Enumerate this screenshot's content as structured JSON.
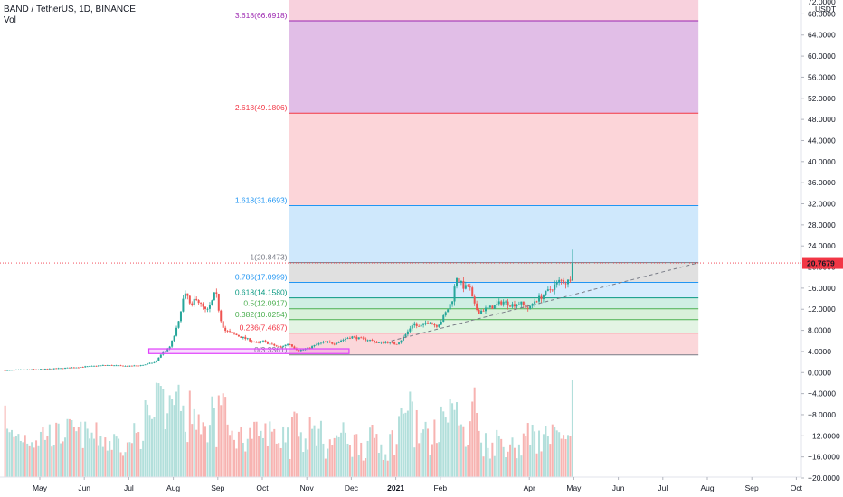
{
  "header": {
    "symbol_line": "BAND / TetherUS, 1D, BINANCE",
    "volume_label": "Vol"
  },
  "price_axis": {
    "unit": "USDT",
    "top_partial_label": "72.0000",
    "last_price_label": "20.7679",
    "last_price_color": "#f23645"
  },
  "chart_data": {
    "type": "candlestick",
    "price_ylim": [
      -21,
      75
    ],
    "y_tick_values": [
      68,
      64,
      60,
      56,
      52,
      48,
      44,
      40,
      36,
      32,
      28,
      24,
      20,
      16,
      12,
      8,
      4,
      0,
      -4,
      -8,
      -12,
      -16,
      -20
    ],
    "y_tick_labels": [
      "68.0000",
      "64.0000",
      "60.0000",
      "56.0000",
      "52.0000",
      "48.0000",
      "44.0000",
      "40.0000",
      "36.0000",
      "32.0000",
      "28.0000",
      "24.0000",
      "20.0000",
      "16.0000",
      "12.0000",
      "8.0000",
      "4.0000",
      "0.0000",
      "−4.0000",
      "−8.0000",
      "−12.0000",
      "−16.0000",
      "−20.0000"
    ],
    "x_tick_labels": [
      "May",
      "Jun",
      "Jul",
      "Aug",
      "Sep",
      "Oct",
      "Nov",
      "Dec",
      "2021",
      "Feb",
      "Apr",
      "May",
      "Jun",
      "Jul",
      "Aug",
      "Sep",
      "Oct"
    ],
    "x_tick_month_index": [
      0,
      1,
      2,
      3,
      4,
      5,
      6,
      7,
      8,
      9,
      11,
      12,
      13,
      14,
      15,
      16,
      17
    ],
    "x_range_months": [
      -0.8,
      17.8
    ],
    "price_path": [
      [
        -0.8,
        0.4
      ],
      [
        0.0,
        0.6
      ],
      [
        0.5,
        0.8
      ],
      [
        1.0,
        1.1
      ],
      [
        1.5,
        1.4
      ],
      [
        2.0,
        1.2
      ],
      [
        2.3,
        1.4
      ],
      [
        2.6,
        2.0
      ],
      [
        2.75,
        3.8
      ],
      [
        2.9,
        4.5
      ],
      [
        3.0,
        6.5
      ],
      [
        3.12,
        9.5
      ],
      [
        3.2,
        13.5
      ],
      [
        3.3,
        15.0
      ],
      [
        3.4,
        12.0
      ],
      [
        3.5,
        14.5
      ],
      [
        3.6,
        13.0
      ],
      [
        3.75,
        11.5
      ],
      [
        3.85,
        13.0
      ],
      [
        3.95,
        15.5
      ],
      [
        4.05,
        10.5
      ],
      [
        4.15,
        8.0
      ],
      [
        4.3,
        7.5
      ],
      [
        4.5,
        6.8
      ],
      [
        4.7,
        6.2
      ],
      [
        4.9,
        5.5
      ],
      [
        5.0,
        6.0
      ],
      [
        5.2,
        5.3
      ],
      [
        5.4,
        4.8
      ],
      [
        5.6,
        5.5
      ],
      [
        5.8,
        4.2
      ],
      [
        6.0,
        4.5
      ],
      [
        6.2,
        5.2
      ],
      [
        6.4,
        5.8
      ],
      [
        6.6,
        5.5
      ],
      [
        6.8,
        6.2
      ],
      [
        7.0,
        6.8
      ],
      [
        7.2,
        6.4
      ],
      [
        7.4,
        6.2
      ],
      [
        7.6,
        5.6
      ],
      [
        7.8,
        5.8
      ],
      [
        8.0,
        5.4
      ],
      [
        8.1,
        6.0
      ],
      [
        8.25,
        7.5
      ],
      [
        8.4,
        9.5
      ],
      [
        8.5,
        8.5
      ],
      [
        8.6,
        9.0
      ],
      [
        8.75,
        9.8
      ],
      [
        8.9,
        8.8
      ],
      [
        9.0,
        9.5
      ],
      [
        9.1,
        11.0
      ],
      [
        9.2,
        12.5
      ],
      [
        9.3,
        14.5
      ],
      [
        9.35,
        18.5
      ],
      [
        9.45,
        17.0
      ],
      [
        9.55,
        16.0
      ],
      [
        9.65,
        16.5
      ],
      [
        9.75,
        13.0
      ],
      [
        9.85,
        11.5
      ],
      [
        10.0,
        12.0
      ],
      [
        10.2,
        12.5
      ],
      [
        10.4,
        13.5
      ],
      [
        10.6,
        12.8
      ],
      [
        10.8,
        13.2
      ],
      [
        11.0,
        12.0
      ],
      [
        11.1,
        13.5
      ],
      [
        11.3,
        14.5
      ],
      [
        11.5,
        16.0
      ],
      [
        11.7,
        17.5
      ],
      [
        11.85,
        17.0
      ],
      [
        11.95,
        18.5
      ],
      [
        12.0,
        20.8
      ]
    ],
    "volume_ylim": [
      0,
      1
    ],
    "volume_max_index": 71
  },
  "fib_retracement": {
    "levels": [
      {
        "ratio": "3.618",
        "price": 66.6918,
        "label": "3.618(66.6918)",
        "color": "#9c27b0",
        "fill": "#e1bee7"
      },
      {
        "ratio": "2.618",
        "price": 49.1806,
        "label": "2.618(49.1806)",
        "color": "#f23645",
        "fill": "#fcd5d9"
      },
      {
        "ratio": "1.618",
        "price": 31.6693,
        "label": "1.618(31.6693)",
        "color": "#2196f3",
        "fill": "#cfe8fc"
      },
      {
        "ratio": "1",
        "price": 20.8473,
        "label": "1(20.8473)",
        "color": "#787b86",
        "fill": "#e0e0e0"
      },
      {
        "ratio": "0.786",
        "price": 17.0999,
        "label": "0.786(17.0999)",
        "color": "#2196f3",
        "fill": "#d6ecfd"
      },
      {
        "ratio": "0.618",
        "price": 14.158,
        "label": "0.618(14.1580)",
        "color": "#089981",
        "fill": "#cfeee3"
      },
      {
        "ratio": "0.5",
        "price": 12.0917,
        "label": "0.5(12.0917)",
        "color": "#4caf50",
        "fill": "#d9f0da"
      },
      {
        "ratio": "0.382",
        "price": 10.0254,
        "label": "0.382(10.0254)",
        "color": "#4caf50",
        "fill": "#e3f4e4"
      },
      {
        "ratio": "0.236",
        "price": 7.4687,
        "label": "0.236(7.4687)",
        "color": "#f23645",
        "fill": "#fbd7da"
      },
      {
        "ratio": "0",
        "price": 3.3361,
        "label": "0(3.3361)",
        "color": "#787b86",
        "fill": ""
      }
    ],
    "top_band_fill": "#f8d1dd",
    "x_start_month": 5.6,
    "x_end_month": 14.8
  },
  "annotations": {
    "support_box": {
      "x_start_month": 2.45,
      "x_end_month": 6.95,
      "price_low": 3.6,
      "price_high": 4.5,
      "color": "#e040fb"
    },
    "trend_line": {
      "x_start_month": 7.9,
      "price_start": 6.0,
      "x_end_month": 14.8,
      "price_end": 20.8
    },
    "last_price_line_color": "#f23645"
  },
  "colors": {
    "up": "#26a69a",
    "down": "#ef5350",
    "up_volume": "#b2dfdb",
    "down_volume": "#f7b3b1",
    "axis_line": "#e0e3eb",
    "text": "#131722"
  }
}
